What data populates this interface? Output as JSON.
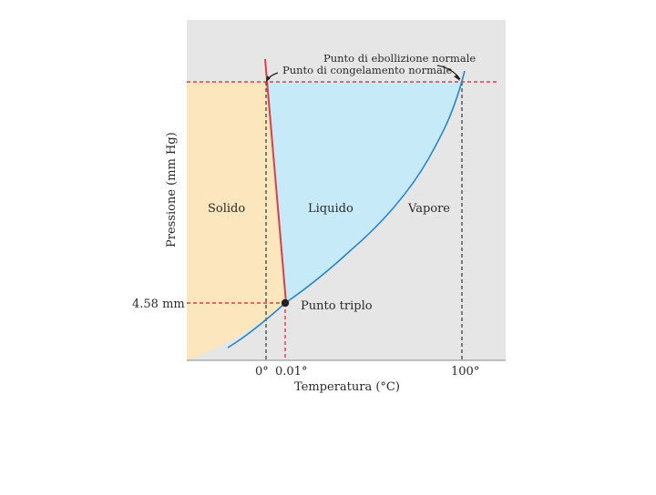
{
  "diagram": {
    "regions": {
      "solid": "Solido",
      "liquid": "Liquido",
      "vapor": "Vapore"
    },
    "annotations": {
      "boiling_point": "Punto di ebollizione normale",
      "freezing_point": "Punto di congelamento normale",
      "triple_point": "Punto triplo"
    },
    "axes": {
      "y_label": "Pressione (mm Hg)",
      "x_label": "Temperatura (°C)",
      "y_tick": "4.58 mm",
      "x_ticks": [
        "0°",
        "0.01°",
        "100°"
      ]
    },
    "colors": {
      "panel": "#e6e6e6",
      "solid": "#fbe6bd",
      "liquid": "#c6eaf8",
      "fusion_line": "#d94048",
      "vapor_curve": "#2a86c8",
      "guide_red": "#d0202a",
      "guide_black": "#333333"
    }
  }
}
